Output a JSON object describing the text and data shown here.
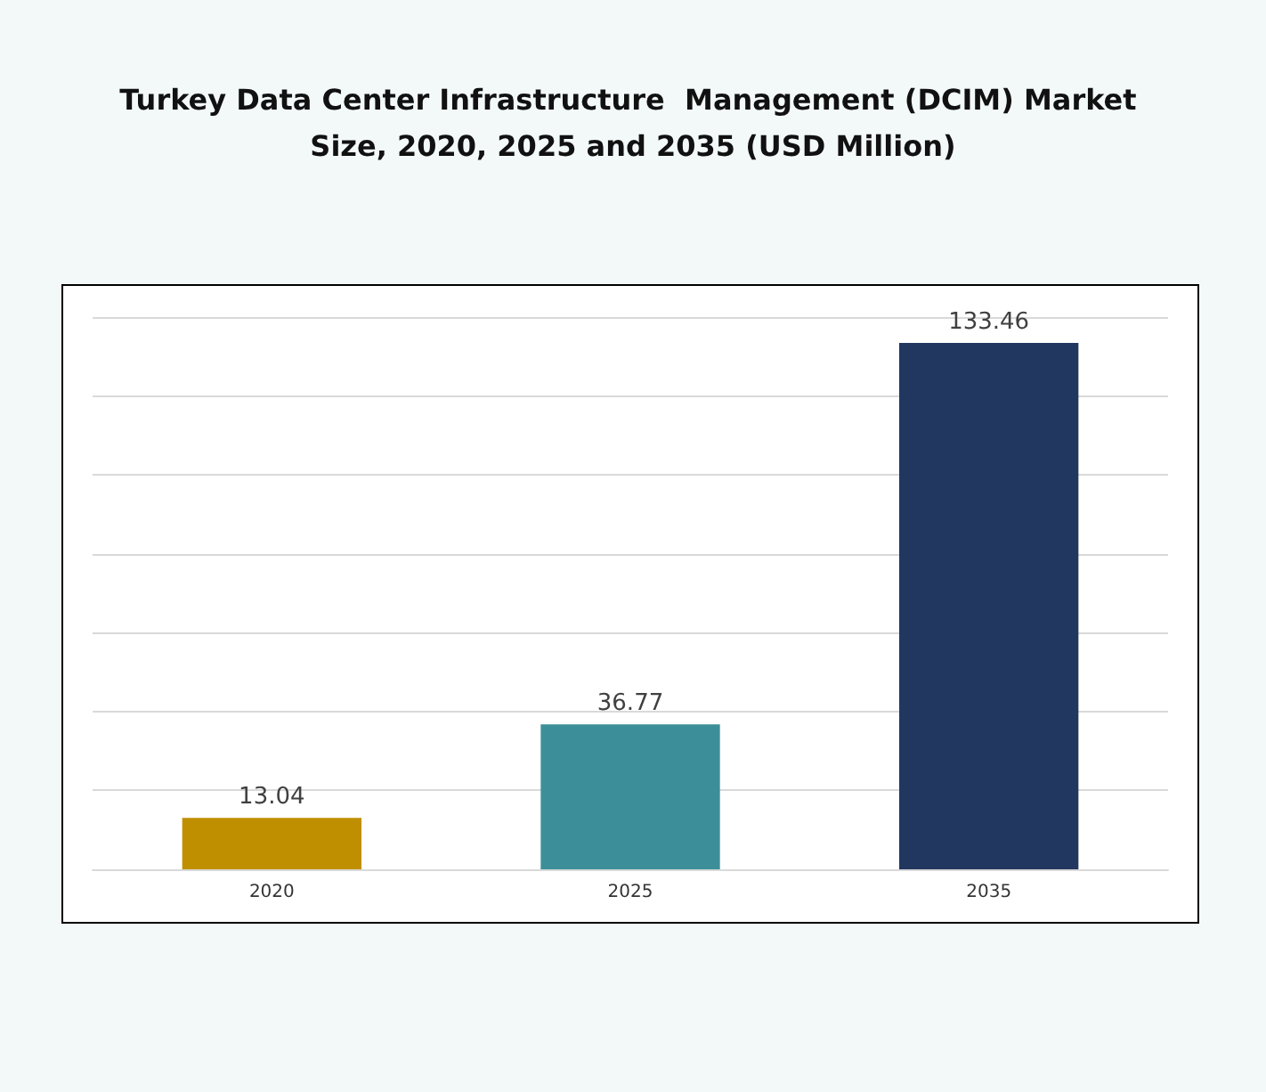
{
  "chart_data": {
    "type": "bar",
    "title": "Turkey Data Center Infrastructure  Management (DCIM) Market Size, 2020, 2025 and 2035 (USD Million)",
    "categories": [
      "2020",
      "2025",
      "2035"
    ],
    "values": [
      13.04,
      36.77,
      133.46
    ],
    "colors": [
      "#c08f00",
      "#3c8f98",
      "#21375f"
    ],
    "ylim": [
      0,
      140
    ],
    "yticks": [
      {
        "value": 0,
        "label": null
      },
      {
        "value": 20,
        "label": null
      },
      {
        "value": 40,
        "label": null
      },
      {
        "value": 60,
        "label": null
      },
      {
        "value": 80,
        "label": null
      },
      {
        "value": 100,
        "label": null
      },
      {
        "value": 120,
        "label": null
      },
      {
        "value": 140,
        "label": null
      }
    ],
    "grid": "y",
    "tick_labels": "x",
    "data_labels": true
  }
}
